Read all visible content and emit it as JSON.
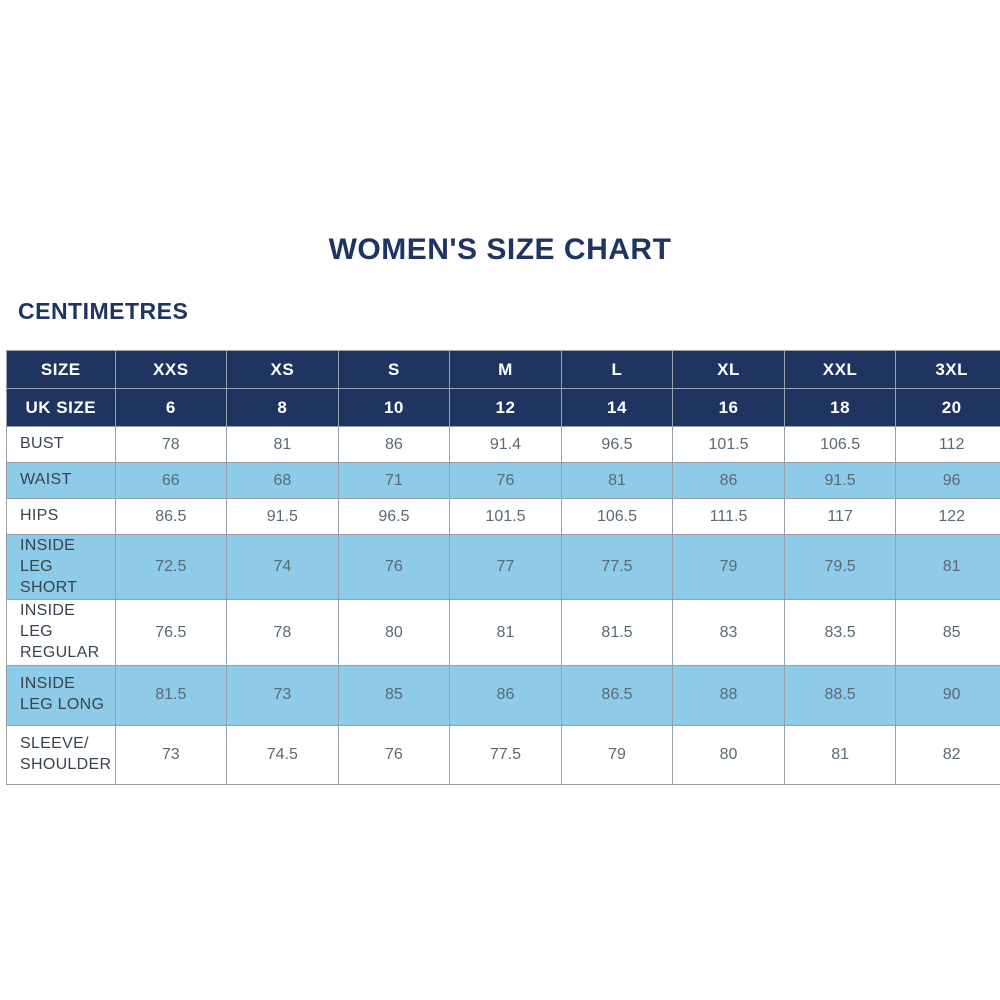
{
  "page": {
    "title": "WOMEN'S SIZE CHART",
    "units_label": "CENTIMETRES"
  },
  "colors": {
    "navy_header": "#1F3460",
    "shaded_row_blue": "#8DCBE9",
    "cell_border": "#97A1AB",
    "title_text": "#1F3460",
    "value_text": "#5B6972",
    "header_text": "#FFFFFF"
  },
  "chart_data": {
    "type": "table",
    "title": "WOMEN'S SIZE CHART",
    "units": "CENTIMETRES",
    "columns": [
      "SIZE",
      "XXS",
      "XS",
      "S",
      "M",
      "L",
      "XL",
      "XXL",
      "3XL"
    ],
    "uk_size_row": {
      "label": "UK SIZE",
      "values": [
        "6",
        "8",
        "10",
        "12",
        "14",
        "16",
        "18",
        "20"
      ]
    },
    "rows": [
      {
        "label": "BUST",
        "shaded": false,
        "values": [
          "78",
          "81",
          "86",
          "91.4",
          "96.5",
          "101.5",
          "106.5",
          "112"
        ]
      },
      {
        "label": "WAIST",
        "shaded": true,
        "values": [
          "66",
          "68",
          "71",
          "76",
          "81",
          "86",
          "91.5",
          "96"
        ]
      },
      {
        "label": "HIPS",
        "shaded": false,
        "values": [
          "86.5",
          "91.5",
          "96.5",
          "101.5",
          "106.5",
          "111.5",
          "117",
          "122"
        ]
      },
      {
        "label": "INSIDE LEG SHORT",
        "shaded": true,
        "values": [
          "72.5",
          "74",
          "76",
          "77",
          "77.5",
          "79",
          "79.5",
          "81"
        ]
      },
      {
        "label": "INSIDE LEG REGULAR",
        "shaded": false,
        "values": [
          "76.5",
          "78",
          "80",
          "81",
          "81.5",
          "83",
          "83.5",
          "85"
        ]
      },
      {
        "label": "INSIDE LEG LONG",
        "shaded": true,
        "values": [
          "81.5",
          "73",
          "85",
          "86",
          "86.5",
          "88",
          "88.5",
          "90"
        ]
      },
      {
        "label": "SLEEVE/ SHOULDER",
        "shaded": false,
        "values": [
          "73",
          "74.5",
          "76",
          "77.5",
          "79",
          "80",
          "81",
          "82"
        ]
      }
    ]
  }
}
